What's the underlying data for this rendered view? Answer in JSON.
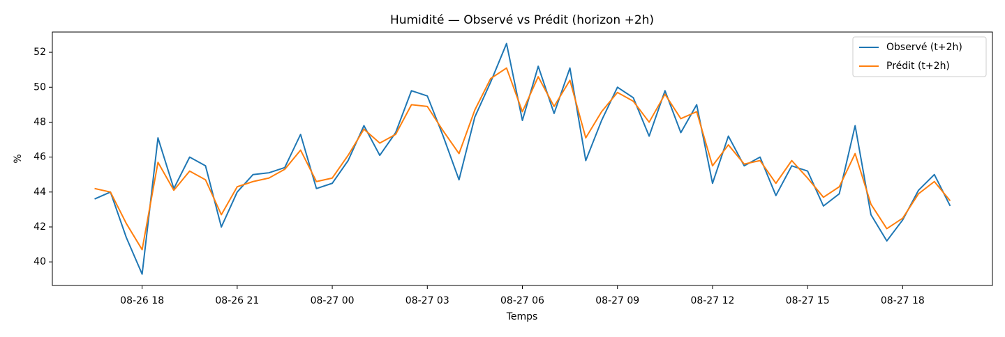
{
  "chart_data": {
    "type": "line",
    "title": "Humidité — Observé vs Prédit (horizon +2h)",
    "xlabel": "Temps",
    "ylabel": "%",
    "x": [
      "08-26 16:30",
      "08-26 17:00",
      "08-26 17:30",
      "08-26 18:00",
      "08-26 18:30",
      "08-26 19:00",
      "08-26 19:30",
      "08-26 20:00",
      "08-26 20:30",
      "08-26 21:00",
      "08-26 21:30",
      "08-26 22:00",
      "08-26 22:30",
      "08-26 23:00",
      "08-26 23:30",
      "08-27 00:00",
      "08-27 00:30",
      "08-27 01:00",
      "08-27 01:30",
      "08-27 02:00",
      "08-27 02:30",
      "08-27 03:00",
      "08-27 03:30",
      "08-27 04:00",
      "08-27 04:30",
      "08-27 05:00",
      "08-27 05:30",
      "08-27 06:00",
      "08-27 06:30",
      "08-27 07:00",
      "08-27 07:30",
      "08-27 08:00",
      "08-27 08:30",
      "08-27 09:00",
      "08-27 09:30",
      "08-27 10:00",
      "08-27 10:30",
      "08-27 11:00",
      "08-27 11:30",
      "08-27 12:00",
      "08-27 12:30",
      "08-27 13:00",
      "08-27 13:30",
      "08-27 14:00",
      "08-27 14:30",
      "08-27 15:00",
      "08-27 15:30",
      "08-27 16:00",
      "08-27 16:30",
      "08-27 17:00",
      "08-27 17:30",
      "08-27 18:00",
      "08-27 18:30",
      "08-27 19:00",
      "08-27 19:30"
    ],
    "series": [
      {
        "name": "Observé (t+2h)",
        "color": "#1f77b4",
        "values": [
          43.6,
          44.0,
          41.4,
          39.3,
          47.1,
          44.2,
          46.0,
          45.5,
          42.0,
          44.0,
          45.0,
          45.1,
          45.4,
          47.3,
          44.2,
          44.5,
          45.8,
          47.8,
          46.1,
          47.4,
          49.8,
          49.5,
          47.2,
          44.7,
          48.3,
          50.3,
          52.5,
          48.1,
          51.2,
          48.5,
          51.1,
          45.8,
          48.1,
          50.0,
          49.4,
          47.2,
          49.8,
          47.4,
          49.0,
          44.5,
          47.2,
          45.5,
          46.0,
          43.8,
          45.5,
          45.2,
          43.2,
          43.9,
          47.8,
          42.7,
          41.2,
          42.4,
          44.1,
          45.0,
          43.2
        ]
      },
      {
        "name": "Prédit (t+2h)",
        "color": "#ff7f0e",
        "values": [
          44.2,
          44.0,
          42.2,
          40.7,
          45.7,
          44.1,
          45.2,
          44.7,
          42.7,
          44.3,
          44.6,
          44.8,
          45.3,
          46.4,
          44.6,
          44.8,
          46.1,
          47.6,
          46.8,
          47.3,
          49.0,
          48.9,
          47.5,
          46.2,
          48.7,
          50.5,
          51.1,
          48.6,
          50.6,
          48.9,
          50.4,
          47.1,
          48.6,
          49.7,
          49.2,
          48.0,
          49.6,
          48.2,
          48.6,
          45.5,
          46.7,
          45.6,
          45.8,
          44.5,
          45.8,
          44.8,
          43.7,
          44.3,
          46.2,
          43.3,
          41.9,
          42.5,
          43.9,
          44.6,
          43.5
        ]
      }
    ],
    "xlim": [
      "08-26 15:10",
      "08-27 20:50"
    ],
    "xticks": [
      "08-26 18",
      "08-26 21",
      "08-27 00",
      "08-27 03",
      "08-27 06",
      "08-27 09",
      "08-27 12",
      "08-27 15",
      "08-27 18"
    ],
    "ylim": [
      38.65,
      53.16
    ],
    "yticks": [
      40,
      42,
      44,
      46,
      48,
      50,
      52
    ],
    "grid": false,
    "legend": "upper right"
  }
}
